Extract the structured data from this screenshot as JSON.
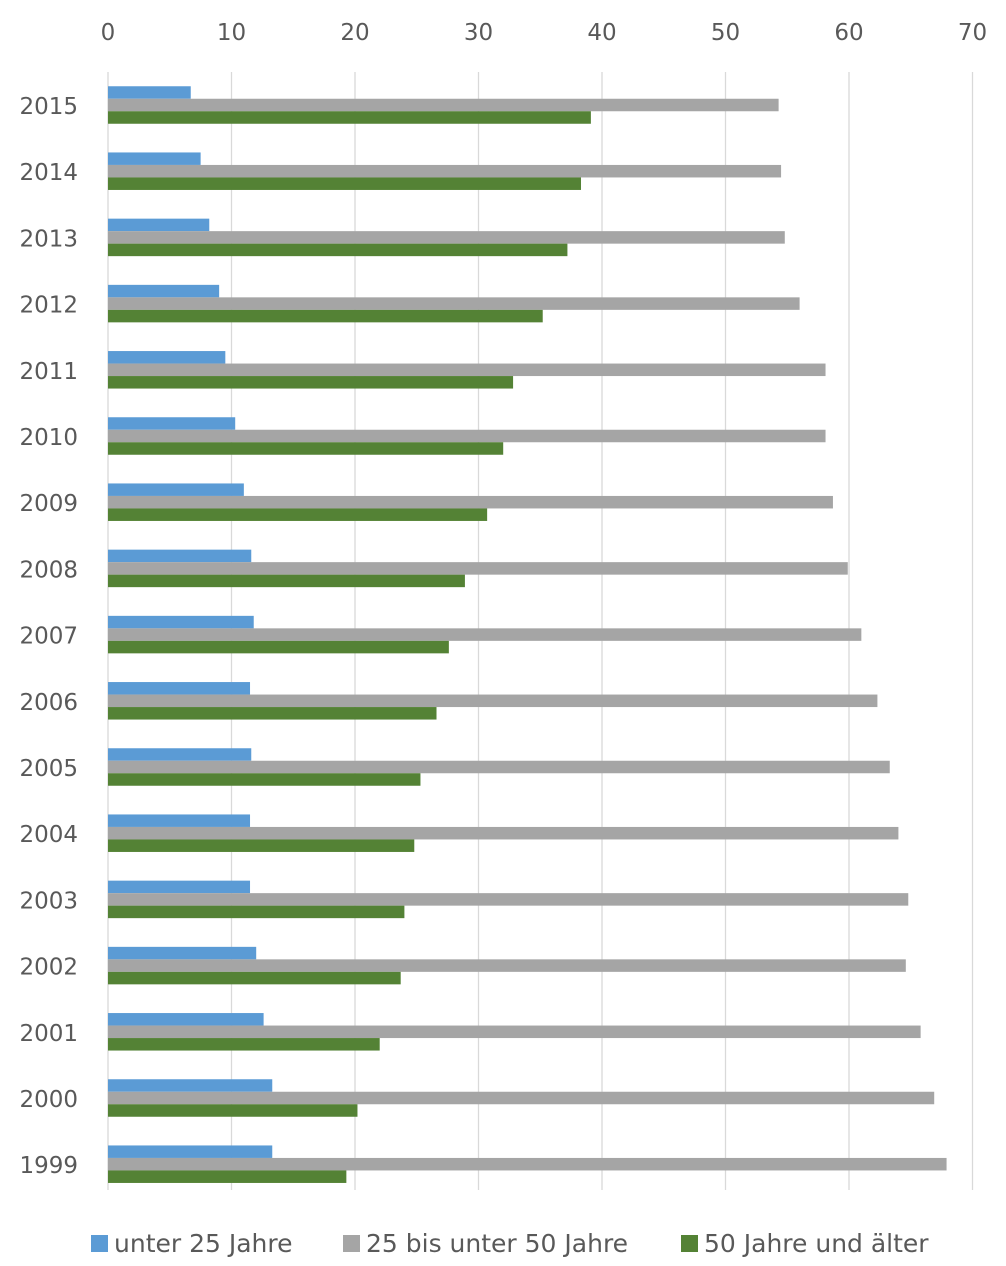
{
  "chart_data": {
    "type": "bar",
    "orientation": "horizontal",
    "categories": [
      "2015",
      "2014",
      "2013",
      "2012",
      "2011",
      "2010",
      "2009",
      "2008",
      "2007",
      "2006",
      "2005",
      "2004",
      "2003",
      "2002",
      "2001",
      "2000",
      "1999"
    ],
    "series": [
      {
        "name": "unter 25 Jahre",
        "color": "#5b9bd5",
        "values": [
          6.7,
          7.5,
          8.2,
          9.0,
          9.5,
          10.3,
          11.0,
          11.6,
          11.8,
          11.5,
          11.6,
          11.5,
          11.5,
          12.0,
          12.6,
          13.3,
          13.3
        ]
      },
      {
        "name": "25 bis unter 50 Jahre",
        "color": "#a5a5a5",
        "values": [
          54.3,
          54.5,
          54.8,
          56.0,
          58.1,
          58.1,
          58.7,
          59.9,
          61.0,
          62.3,
          63.3,
          64.0,
          64.8,
          64.6,
          65.8,
          66.9,
          67.9
        ]
      },
      {
        "name": "50 Jahre und älter",
        "color": "#548235",
        "values": [
          39.1,
          38.3,
          37.2,
          35.2,
          32.8,
          32.0,
          30.7,
          28.9,
          27.6,
          26.6,
          25.3,
          24.8,
          24.0,
          23.7,
          22.0,
          20.2,
          19.3
        ]
      }
    ],
    "x_ticks": [
      "0",
      "10",
      "20",
      "30",
      "40",
      "50",
      "60",
      "70"
    ],
    "xlim": [
      0,
      70
    ],
    "grid": true,
    "legend_position": "bottom",
    "title": "",
    "xlabel": "",
    "ylabel": ""
  }
}
